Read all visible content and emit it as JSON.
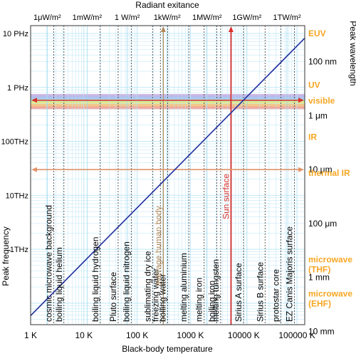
{
  "chart_data": {
    "type": "line",
    "title": "",
    "xlabel": "Black-body temperature",
    "top_axis_label": "Radiant exitance",
    "ylabel_left": "Peak frequency",
    "ylabel_right": "Peak wavelength",
    "x_scale": "log",
    "x_unit": "K",
    "xlim": [
      1,
      140000
    ],
    "x_ticks": [
      {
        "value": 1,
        "label": "1 K"
      },
      {
        "value": 10,
        "label": "10 K"
      },
      {
        "value": 100,
        "label": "100 K"
      },
      {
        "value": 1000,
        "label": "1000 K"
      },
      {
        "value": 10000,
        "label": "10000 K"
      },
      {
        "value": 100000,
        "label": "100000 K"
      }
    ],
    "top_ticks": [
      {
        "label": "1μW/m²",
        "temperature": 2.05
      },
      {
        "label": "1mW/m²",
        "temperature": 11.5
      },
      {
        "label": "1 W/m²",
        "temperature": 65
      },
      {
        "label": "1kW/m²",
        "temperature": 365
      },
      {
        "label": "1MW/m²",
        "temperature": 2050
      },
      {
        "label": "1GW/m²",
        "temperature": 11500
      },
      {
        "label": "1TW/m²",
        "temperature": 65000
      }
    ],
    "y_scale": "log",
    "y_unit": "Hz",
    "ylim": [
      40000000000.0,
      1.4e+16
    ],
    "left_ticks": [
      {
        "value": 1e+16,
        "label": "10 PHz"
      },
      {
        "value": 1000000000000000.0,
        "label": "1 PHz"
      },
      {
        "value": 100000000000000.0,
        "label": "100THz"
      },
      {
        "value": 10000000000000.0,
        "label": "10THz"
      },
      {
        "value": 1000000000000.0,
        "label": "1THz"
      }
    ],
    "right_ticks": [
      {
        "value": 3000000000000000.0,
        "label": "100 nm"
      },
      {
        "value": 300000000000000.0,
        "label": "1 μm"
      },
      {
        "value": 30000000000000.0,
        "label": "10 μm"
      },
      {
        "value": 3000000000000.0,
        "label": "100 μm"
      },
      {
        "value": 300000000000.0,
        "label": "1 mm"
      },
      {
        "value": 30000000000.0,
        "label": "10 mm"
      }
    ],
    "bands": [
      {
        "name": "EUV",
        "label_value": 1e+16
      },
      {
        "name": "UV",
        "label_value": 1100000000000000.0
      },
      {
        "name": "visible",
        "label_value": 570000000000000.0
      },
      {
        "name": "IR",
        "label_value": 120000000000000.0
      },
      {
        "name": "thermal IR",
        "label_value": 26000000000000.0
      },
      {
        "name": "microwave",
        "sub": "(THF)",
        "label_value": 650000000000.0
      },
      {
        "name": "microwave",
        "sub": "(EHF)",
        "label_value": 150000000000.0
      }
    ],
    "band_color": "#f5a623",
    "series": [
      {
        "type": "line",
        "points": [
          [
            1,
            58800000000.0
          ],
          [
            140000,
            8200000000000000.0
          ]
        ],
        "color": "#1f2d9e"
      }
    ],
    "spectrum_band": {
      "from": 400000000000000.0,
      "to": 750000000000000.0
    },
    "highlights": [
      {
        "kind": "vertical",
        "value": 310,
        "color": "#b08a5c"
      },
      {
        "kind": "vertical",
        "value": 5778,
        "color": "#d9302c",
        "label": "Sun surface"
      },
      {
        "kind": "horizontal",
        "value": 580000000000000.0,
        "color": "#d9302c"
      },
      {
        "kind": "horizontal",
        "value": 30000000000000.0,
        "color": "#e0956a"
      }
    ],
    "reference_temperatures": [
      {
        "label": "cosmic microwave background",
        "temperature": 2.725
      },
      {
        "label": "boiling liquid helium",
        "temperature": 4.22
      },
      {
        "label": "boiling liquid hydrogen",
        "temperature": 20.3
      },
      {
        "label": "Pluto surface",
        "temperature": 44
      },
      {
        "label": "boiling liquid nitrogen",
        "temperature": 77.4
      },
      {
        "label": "sublimating dry ice",
        "temperature": 194.7
      },
      {
        "label": "freezing water",
        "temperature": 273.15
      },
      {
        "label": "average human body",
        "temperature": 310
      },
      {
        "label": "boiling water",
        "temperature": 373.15
      },
      {
        "label": "melting aluminium",
        "temperature": 933
      },
      {
        "label": "melting iron",
        "temperature": 1811
      },
      {
        "label": "boiling iron",
        "temperature": 3134
      },
      {
        "label": "melting tungsten",
        "temperature": 3695
      },
      {
        "label": "Sun surface",
        "temperature": 5778
      },
      {
        "label": "Sirius A surface",
        "temperature": 9940
      },
      {
        "label": "Sirius B surface",
        "temperature": 25200
      },
      {
        "label": "protostar core",
        "temperature": 50000
      },
      {
        "label": "EZ Canis Majoris surface",
        "temperature": 90000
      }
    ],
    "grid": true,
    "grid_color": "#b8e4f5",
    "legend": "none"
  }
}
